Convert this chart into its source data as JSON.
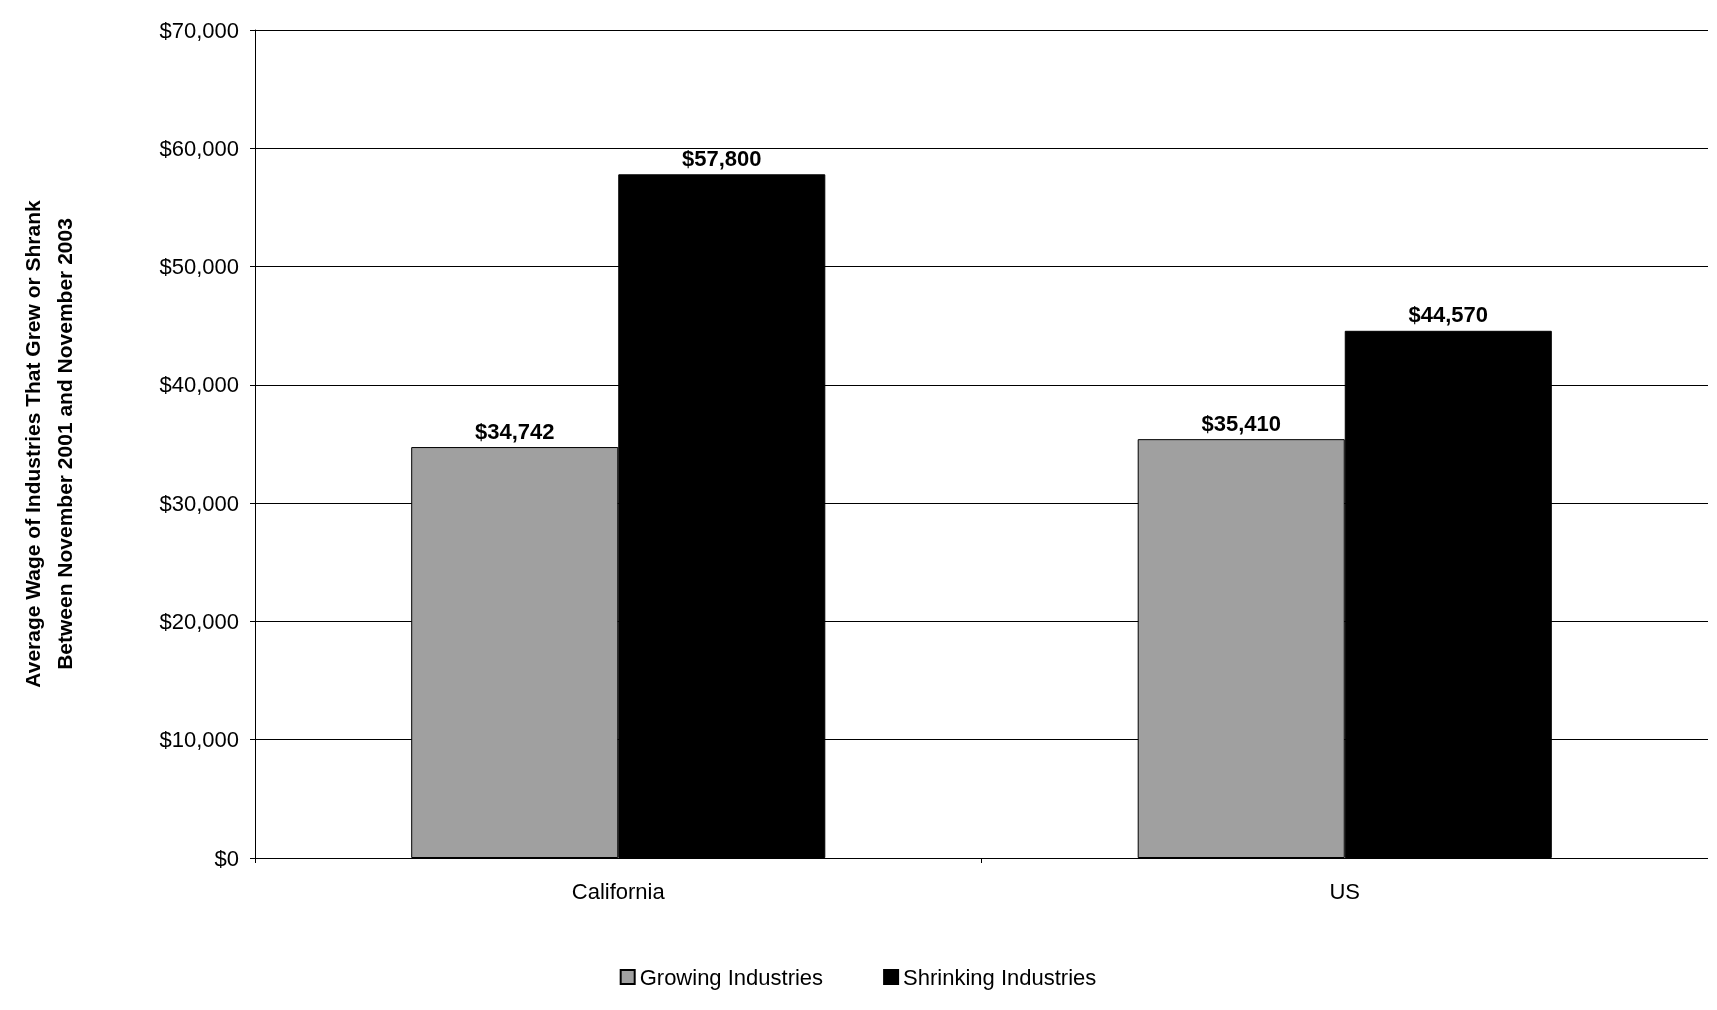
{
  "chart_data": {
    "type": "bar",
    "ylabel": "Average Wage of Industries That Grew or Shrank\nBetween November 2001 and November 2003",
    "categories": [
      "California",
      "US"
    ],
    "series": [
      {
        "name": "Growing Industries",
        "color": "#a0a0a0",
        "values": [
          34742,
          35410
        ],
        "value_labels": [
          "$34,742",
          "$35,410"
        ]
      },
      {
        "name": "Shrinking Industries",
        "color": "#000000",
        "values": [
          57800,
          44570
        ],
        "value_labels": [
          "$57,800",
          "$44,570"
        ]
      }
    ],
    "ylim": [
      0,
      70000
    ],
    "yticks": [
      {
        "value": 0,
        "label": "$0"
      },
      {
        "value": 10000,
        "label": "$10,000"
      },
      {
        "value": 20000,
        "label": "$20,000"
      },
      {
        "value": 30000,
        "label": "$30,000"
      },
      {
        "value": 40000,
        "label": "$40,000"
      },
      {
        "value": 50000,
        "label": "$50,000"
      },
      {
        "value": 60000,
        "label": "$60,000"
      },
      {
        "value": 70000,
        "label": "$70,000"
      }
    ],
    "grid": "y",
    "legend": "bottom"
  }
}
